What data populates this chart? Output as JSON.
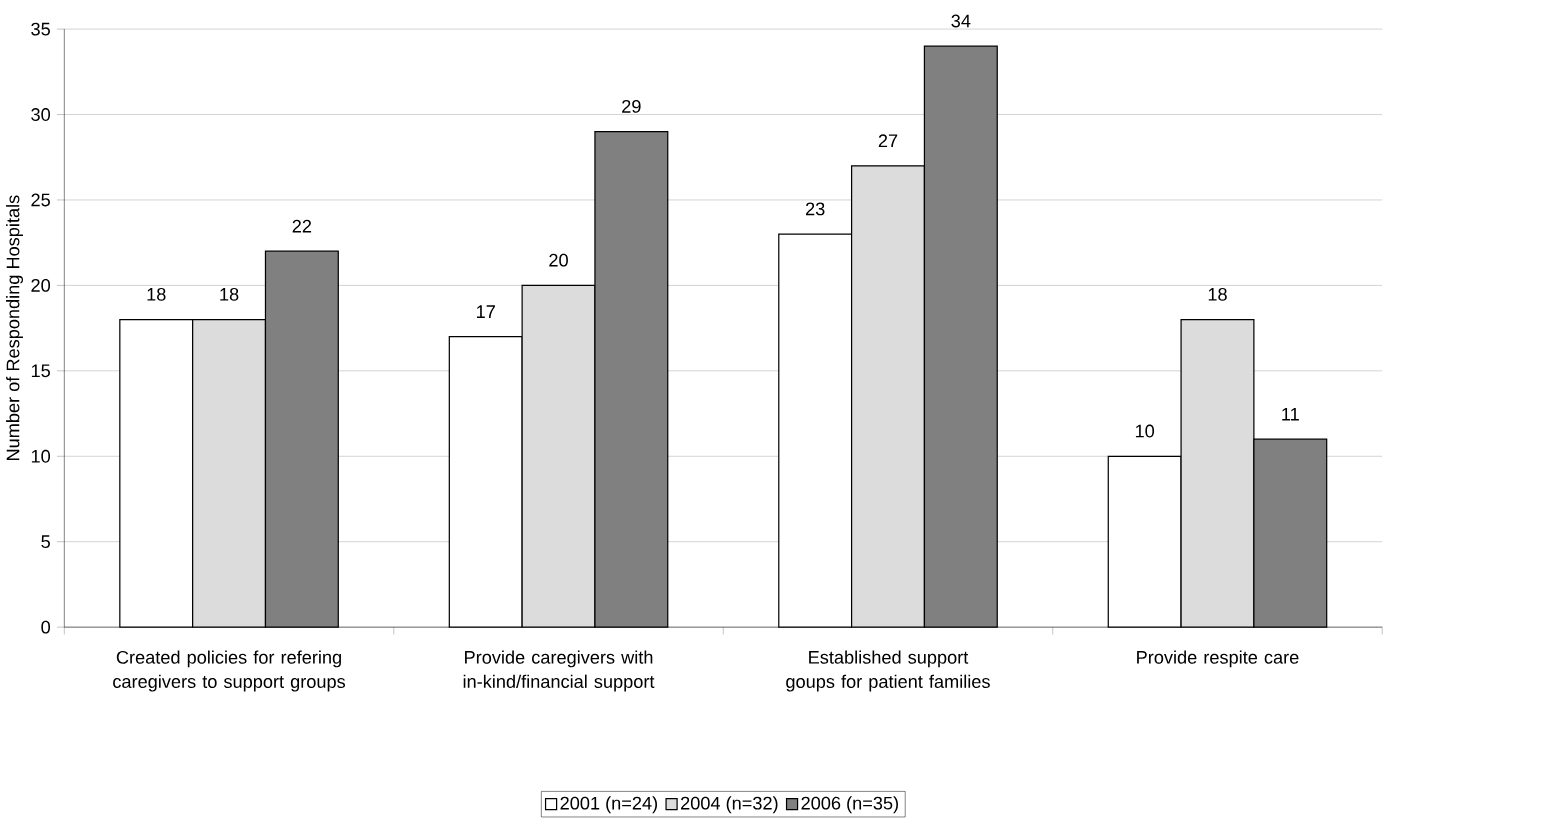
{
  "chart_data": {
    "type": "bar",
    "ylabel": "Number of Responding Hospitals",
    "categories": [
      "Created policies for refering caregivers to support groups",
      "Provide caregivers with in-kind/financial support",
      "Established support goups for patient families",
      "Provide respite care"
    ],
    "series": [
      {
        "name": "2001 (n=24)",
        "color": "#ffffff",
        "values": [
          18,
          17,
          23,
          10
        ]
      },
      {
        "name": "2004 (n=32)",
        "color": "#dcdcdc",
        "values": [
          18,
          20,
          27,
          18
        ]
      },
      {
        "name": "2006 (n=35)",
        "color": "#808080",
        "values": [
          22,
          29,
          34,
          11
        ]
      }
    ],
    "ylim": [
      0,
      35
    ],
    "yticks": [
      0,
      5,
      10,
      15,
      20,
      25,
      30,
      35
    ],
    "grid": "y",
    "legend": "bottom",
    "data_labels": true
  }
}
